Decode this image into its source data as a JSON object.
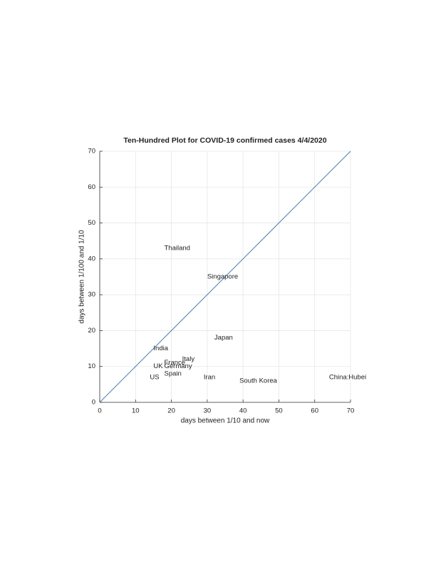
{
  "chart_data": {
    "type": "scatter",
    "title": "Ten-Hundred Plot for COVID-19 confirmed cases 4/4/2020",
    "xlabel": "days between 1/10 and now",
    "ylabel": "days between 1/100 and 1/10",
    "labels": [
      "Thailand",
      "Singapore",
      "Japan",
      "India",
      "Italy",
      "France",
      "Germany",
      "UK",
      "Spain",
      "US",
      "Iran",
      "South Korea",
      "China:Hubei"
    ],
    "x": [
      18,
      30,
      32,
      15,
      23,
      18,
      18,
      15,
      18,
      14,
      29,
      39,
      64
    ],
    "values": [
      43,
      35,
      18,
      15,
      12,
      11,
      10,
      10,
      8,
      7,
      7,
      6,
      7
    ],
    "line": {
      "color": "#4a7fb5",
      "x": [
        0,
        70
      ],
      "values": [
        0,
        70
      ]
    },
    "xlim": [
      0,
      70
    ],
    "ylim": [
      0,
      70
    ],
    "xticks": [
      0,
      10,
      20,
      30,
      40,
      50,
      60,
      70
    ],
    "yticks": [
      0,
      10,
      20,
      30,
      40,
      50,
      60,
      70
    ],
    "grid": true
  }
}
